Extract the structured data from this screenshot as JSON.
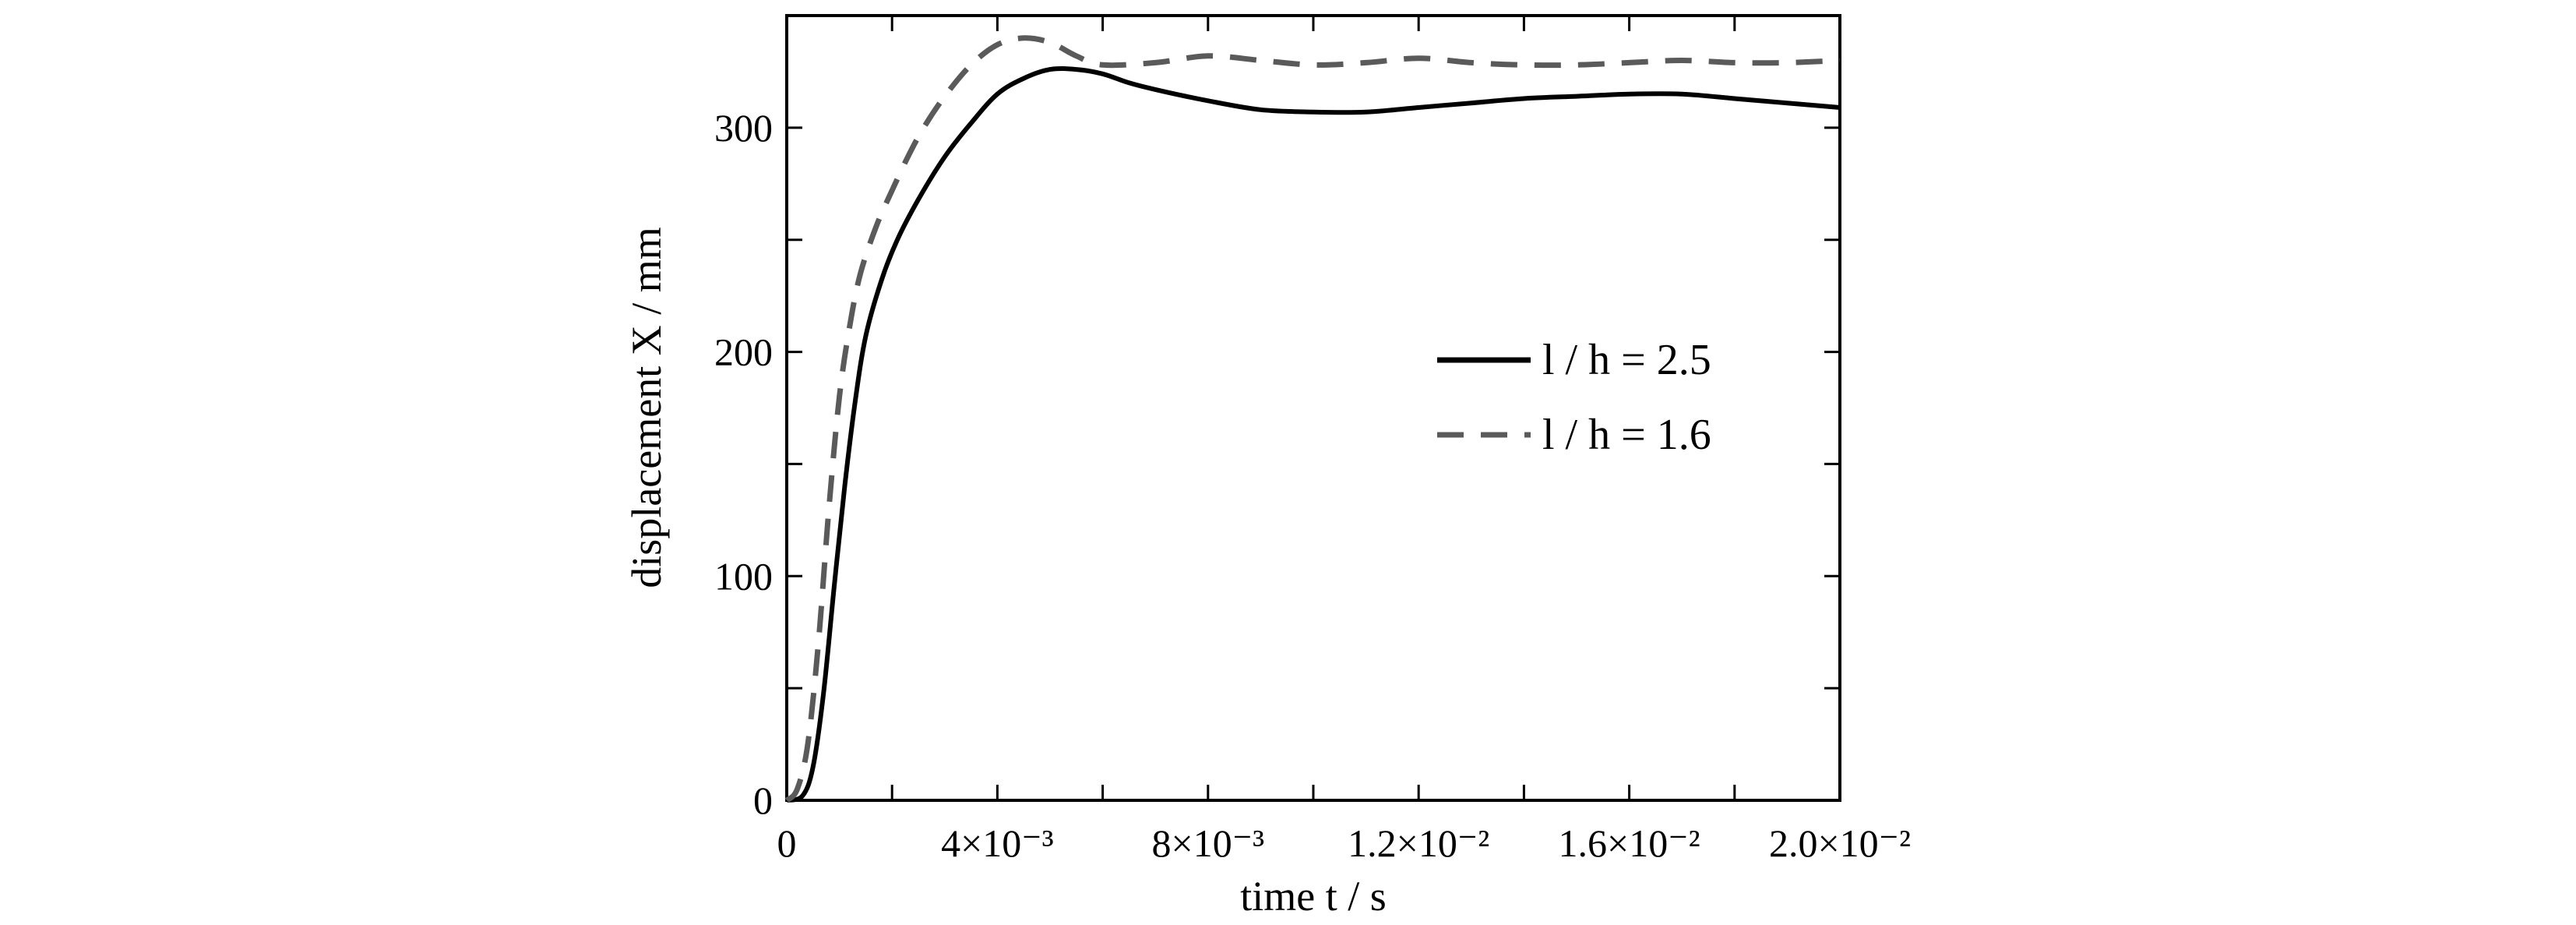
{
  "chart_data": {
    "type": "line",
    "title": "",
    "xlabel": "time t / s",
    "ylabel": "displacement X / mm",
    "xlim": [
      0,
      0.02
    ],
    "ylim": [
      0,
      350
    ],
    "grid": false,
    "legend_position": "center-right",
    "x_ticks": [
      {
        "value": 0,
        "label": "0"
      },
      {
        "value": 0.004,
        "label": "4×10⁻³"
      },
      {
        "value": 0.008,
        "label": "8×10⁻³"
      },
      {
        "value": 0.012,
        "label": "1.2×10⁻²"
      },
      {
        "value": 0.016,
        "label": "1.6×10⁻²"
      },
      {
        "value": 0.02,
        "label": "2.0×10⁻²"
      }
    ],
    "y_ticks": [
      {
        "value": 0,
        "label": "0"
      },
      {
        "value": 100,
        "label": "100"
      },
      {
        "value": 200,
        "label": "200"
      },
      {
        "value": 300,
        "label": "300"
      }
    ],
    "series": [
      {
        "name": "l / h = 2.5",
        "color": "#000000",
        "style": "solid",
        "x": [
          0,
          0.0003,
          0.0005,
          0.0007,
          0.0009,
          0.0011,
          0.0013,
          0.0015,
          0.0018,
          0.0021,
          0.0025,
          0.003,
          0.0035,
          0.004,
          0.0045,
          0.005,
          0.0055,
          0.006,
          0.0065,
          0.007,
          0.008,
          0.009,
          0.01,
          0.011,
          0.012,
          0.013,
          0.014,
          0.015,
          0.016,
          0.017,
          0.018,
          0.019,
          0.02
        ],
        "y": [
          0,
          2,
          15,
          48,
          95,
          140,
          178,
          207,
          232,
          250,
          268,
          287,
          302,
          315,
          322,
          326,
          326,
          324,
          320,
          317,
          312,
          308,
          307,
          307,
          309,
          311,
          313,
          314,
          315,
          315,
          313,
          311,
          309
        ]
      },
      {
        "name": "l / h = 1.6",
        "color": "#5a5a5a",
        "style": "dashed",
        "x": [
          0,
          0.0002,
          0.0004,
          0.0006,
          0.0008,
          0.001,
          0.0012,
          0.0014,
          0.0017,
          0.002,
          0.0023,
          0.0026,
          0.003,
          0.0035,
          0.004,
          0.0045,
          0.005,
          0.0055,
          0.006,
          0.007,
          0.008,
          0.009,
          0.01,
          0.011,
          0.012,
          0.013,
          0.014,
          0.015,
          0.016,
          0.017,
          0.018,
          0.019,
          0.02
        ],
        "y": [
          0,
          5,
          25,
          70,
          130,
          180,
          212,
          235,
          256,
          272,
          287,
          300,
          314,
          328,
          337,
          340,
          338,
          332,
          328,
          329,
          332,
          330,
          328,
          329,
          331,
          329,
          328,
          328,
          329,
          330,
          329,
          329,
          330
        ]
      }
    ]
  }
}
